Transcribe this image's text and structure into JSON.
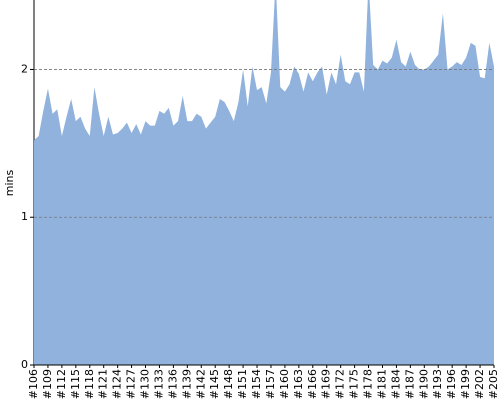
{
  "chart_data": {
    "type": "area",
    "y_label": "mins",
    "color": "#90b2dc",
    "grid": true,
    "ylim": [
      0,
      2.47
    ],
    "yticks": [
      0,
      1,
      2
    ],
    "categories": [
      "#106",
      null,
      null,
      "#109",
      null,
      null,
      "#112",
      null,
      null,
      "#115",
      null,
      null,
      "#118",
      null,
      null,
      "#121",
      null,
      null,
      "#124",
      null,
      null,
      "#127",
      null,
      null,
      "#130",
      null,
      null,
      "#133",
      null,
      null,
      "#136",
      null,
      null,
      "#139",
      null,
      null,
      "#142",
      null,
      null,
      "#145",
      null,
      null,
      "#148",
      null,
      null,
      "#151",
      null,
      null,
      "#154",
      null,
      null,
      "#157",
      null,
      null,
      "#160",
      null,
      null,
      "#163",
      null,
      null,
      "#166",
      null,
      null,
      "#169",
      null,
      null,
      "#172",
      null,
      null,
      "#175",
      null,
      null,
      "#178",
      null,
      null,
      "#181",
      null,
      null,
      "#184",
      null,
      null,
      "#187",
      null,
      null,
      "#190",
      null,
      null,
      "#193",
      null,
      null,
      "#196",
      null,
      null,
      "#199",
      null,
      null,
      "#202",
      null,
      null,
      "#205"
    ],
    "values": [
      1.52,
      1.55,
      1.72,
      1.87,
      1.7,
      1.73,
      1.55,
      1.68,
      1.8,
      1.65,
      1.68,
      1.6,
      1.55,
      1.88,
      1.7,
      1.55,
      1.68,
      1.56,
      1.57,
      1.6,
      1.64,
      1.57,
      1.63,
      1.56,
      1.65,
      1.62,
      1.62,
      1.72,
      1.7,
      1.74,
      1.62,
      1.65,
      1.82,
      1.65,
      1.65,
      1.7,
      1.68,
      1.6,
      1.64,
      1.68,
      1.8,
      1.78,
      1.72,
      1.65,
      1.78,
      2.0,
      1.75,
      2.02,
      1.86,
      1.88,
      1.77,
      1.98,
      2.6,
      1.88,
      1.85,
      1.9,
      2.02,
      1.97,
      1.85,
      1.98,
      1.92,
      1.98,
      2.02,
      1.83,
      1.98,
      1.9,
      2.1,
      1.92,
      1.9,
      1.98,
      1.98,
      1.85,
      2.6,
      2.03,
      2.0,
      2.06,
      2.04,
      2.08,
      2.2,
      2.05,
      2.02,
      2.12,
      2.03,
      2.0,
      2.0,
      2.02,
      2.06,
      2.1,
      2.38,
      2.0,
      2.02,
      2.05,
      2.03,
      2.08,
      2.18,
      2.16,
      1.95,
      1.94,
      2.18,
      2.02
    ]
  }
}
